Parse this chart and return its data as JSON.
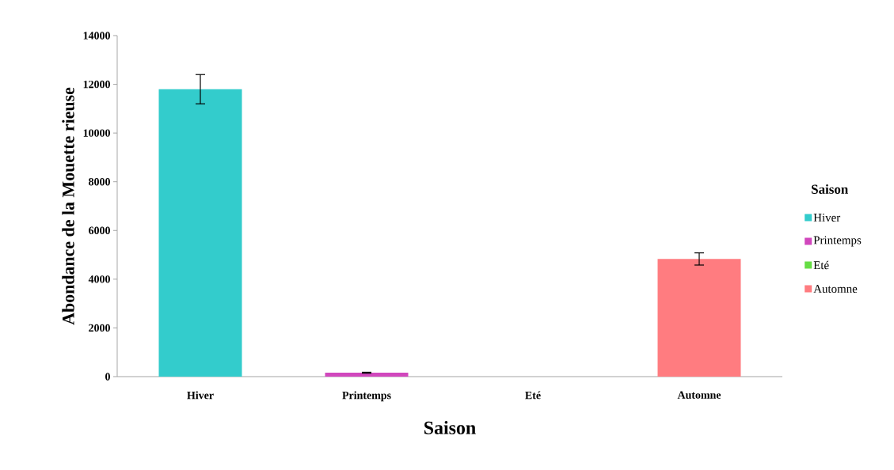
{
  "chart_data": {
    "type": "bar",
    "xlabel": "Saison",
    "ylabel": "Abondance de la Mouette rieuse",
    "legend_title": "Saison",
    "categories": [
      "Hiver",
      "Printemps",
      "Eté",
      "Automne"
    ],
    "series": [
      {
        "name": "Hiver",
        "color": "#33cccc",
        "values": [
          11800,
          null,
          null,
          null
        ],
        "errors": [
          600,
          null,
          null,
          null
        ]
      },
      {
        "name": "Printemps",
        "color": "#d147bd",
        "values": [
          null,
          160,
          null,
          null
        ],
        "errors": [
          null,
          20,
          null,
          null
        ]
      },
      {
        "name": "Eté",
        "color": "#66dd44",
        "values": [
          null,
          null,
          null,
          null
        ],
        "errors": [
          null,
          null,
          null,
          null
        ]
      },
      {
        "name": "Automne",
        "color": "#ff7c80",
        "values": [
          null,
          null,
          null,
          4830
        ],
        "errors": [
          null,
          null,
          null,
          250
        ]
      }
    ],
    "ylim": [
      0,
      14000
    ],
    "yticks": [
      0,
      2000,
      4000,
      6000,
      8000,
      10000,
      12000,
      14000
    ],
    "grid": false,
    "legend": "right"
  }
}
